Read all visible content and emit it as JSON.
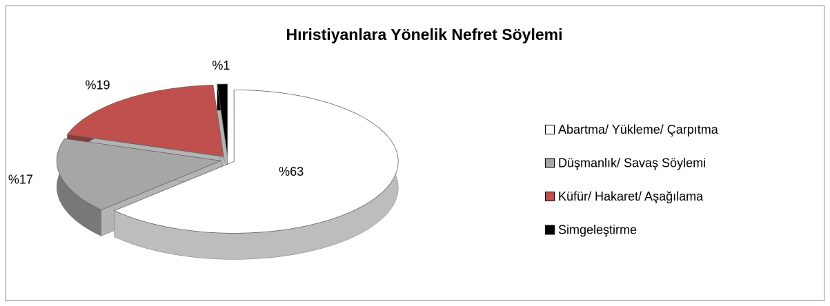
{
  "chart_data": {
    "type": "pie",
    "title": "Hıristiyanlara Yönelik Nefret Söylemi",
    "categories": [
      "Abartma/ Yükleme/ Çarpıtma",
      "Düşmanlık/ Savaş Söylemi",
      "Küfür/ Hakaret/ Aşağılama",
      "Simgeleştirme"
    ],
    "values": [
      63,
      17,
      19,
      1
    ],
    "value_labels": [
      "%63",
      "%17",
      "%19",
      "%1"
    ],
    "colors": [
      "#ffffff",
      "#a6a6a6",
      "#c0504d",
      "#000000"
    ],
    "legend": "right"
  }
}
